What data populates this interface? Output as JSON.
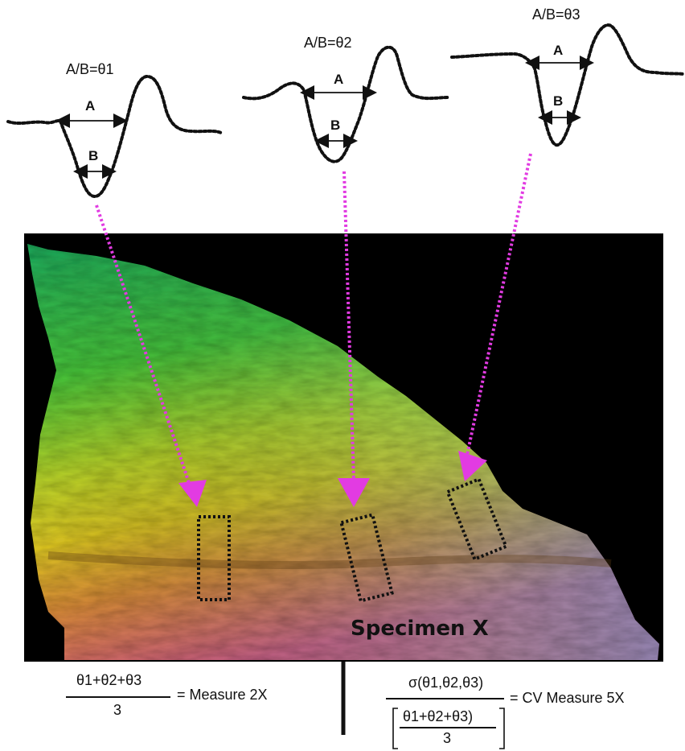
{
  "profiles": [
    {
      "label": "A/B=θ1",
      "a": "A",
      "b": "B"
    },
    {
      "label": "A/B=θ2",
      "a": "A",
      "b": "B"
    },
    {
      "label": "A/B=θ3",
      "a": "A",
      "b": "B"
    }
  ],
  "specimen": {
    "label": "Specimen X"
  },
  "formula_left": {
    "numerator": "θ1+θ2+θ3",
    "denominator": "3",
    "result": "= Measure 2X"
  },
  "formula_right": {
    "numerator": "σ(θ1,θ2,θ3)",
    "inner_numerator": "θ1+θ2+θ3)",
    "inner_denominator": "3",
    "result": "= CV Measure 5X"
  },
  "colors": {
    "arrow": "#e23be2",
    "profile_stroke": "#111111",
    "image_background": "#000000"
  }
}
